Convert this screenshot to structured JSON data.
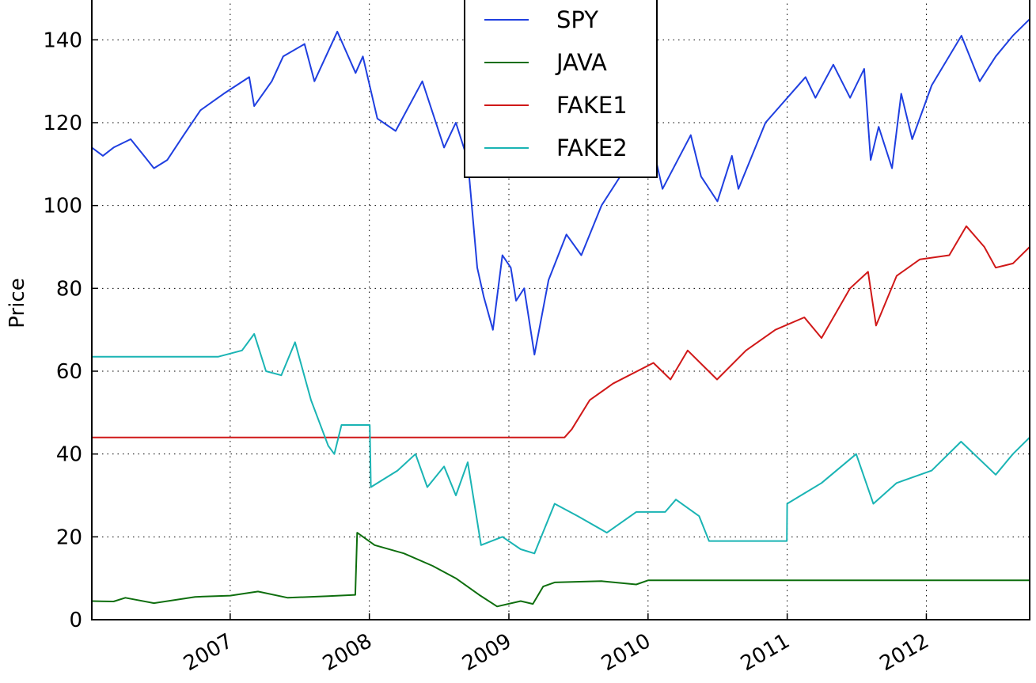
{
  "chart_data": {
    "type": "line",
    "title": "",
    "xlabel": "",
    "ylabel": "Price",
    "xlim": [
      "2006-01-03",
      "2012-09-28"
    ],
    "ylim": [
      0,
      150
    ],
    "x_ticks": [
      "2007-01-01",
      "2008-01-01",
      "2009-01-01",
      "2010-01-01",
      "2011-01-01",
      "2012-01-01"
    ],
    "x_tick_labels": [
      "2007",
      "2008",
      "2009",
      "2010",
      "2011",
      "2012"
    ],
    "y_ticks": [
      0,
      20,
      40,
      60,
      80,
      100,
      120,
      140
    ],
    "y_tick_labels": [
      "0",
      "20",
      "40",
      "60",
      "80",
      "100",
      "120",
      "140"
    ],
    "grid": true,
    "legend_position": "top-center",
    "series": [
      {
        "name": "SPY",
        "color": "#1f3fe0",
        "points": [
          [
            "2006-01-03",
            114
          ],
          [
            "2006-02-01",
            112
          ],
          [
            "2006-03-01",
            114
          ],
          [
            "2006-04-15",
            116
          ],
          [
            "2006-05-20",
            112
          ],
          [
            "2006-06-15",
            109
          ],
          [
            "2006-07-20",
            111
          ],
          [
            "2006-09-01",
            117
          ],
          [
            "2006-10-15",
            123
          ],
          [
            "2006-12-15",
            127
          ],
          [
            "2007-02-20",
            131
          ],
          [
            "2007-03-05",
            124
          ],
          [
            "2007-04-20",
            130
          ],
          [
            "2007-05-20",
            136
          ],
          [
            "2007-07-15",
            139
          ],
          [
            "2007-08-10",
            130
          ],
          [
            "2007-10-09",
            142
          ],
          [
            "2007-11-26",
            132
          ],
          [
            "2007-12-15",
            136
          ],
          [
            "2008-01-22",
            121
          ],
          [
            "2008-03-10",
            118
          ],
          [
            "2008-05-19",
            130
          ],
          [
            "2008-07-15",
            114
          ],
          [
            "2008-08-15",
            120
          ],
          [
            "2008-09-15",
            111
          ],
          [
            "2008-10-10",
            85
          ],
          [
            "2008-10-27",
            78
          ],
          [
            "2008-11-20",
            70
          ],
          [
            "2008-12-15",
            88
          ],
          [
            "2009-01-06",
            85
          ],
          [
            "2009-01-20",
            77
          ],
          [
            "2009-02-10",
            80
          ],
          [
            "2009-03-09",
            64
          ],
          [
            "2009-04-15",
            82
          ],
          [
            "2009-06-01",
            93
          ],
          [
            "2009-07-10",
            88
          ],
          [
            "2009-09-01",
            100
          ],
          [
            "2009-10-20",
            107
          ],
          [
            "2010-01-19",
            112
          ],
          [
            "2010-02-08",
            104
          ],
          [
            "2010-04-23",
            117
          ],
          [
            "2010-05-20",
            107
          ],
          [
            "2010-07-02",
            101
          ],
          [
            "2010-08-09",
            112
          ],
          [
            "2010-08-26",
            104
          ],
          [
            "2010-11-05",
            120
          ],
          [
            "2011-02-18",
            131
          ],
          [
            "2011-03-16",
            126
          ],
          [
            "2011-05-02",
            134
          ],
          [
            "2011-06-15",
            126
          ],
          [
            "2011-07-22",
            133
          ],
          [
            "2011-08-08",
            111
          ],
          [
            "2011-08-29",
            119
          ],
          [
            "2011-10-03",
            109
          ],
          [
            "2011-10-27",
            127
          ],
          [
            "2011-11-25",
            116
          ],
          [
            "2012-01-15",
            129
          ],
          [
            "2012-04-02",
            141
          ],
          [
            "2012-05-20",
            130
          ],
          [
            "2012-07-01",
            136
          ],
          [
            "2012-08-15",
            141
          ],
          [
            "2012-09-28",
            145
          ]
        ]
      },
      {
        "name": "JAVA",
        "color": "#0e6e0e",
        "points": [
          [
            "2006-01-03",
            4.5
          ],
          [
            "2006-03-01",
            4.4
          ],
          [
            "2006-04-01",
            5.3
          ],
          [
            "2006-06-15",
            4
          ],
          [
            "2006-10-01",
            5.5
          ],
          [
            "2007-01-01",
            5.8
          ],
          [
            "2007-03-15",
            6.8
          ],
          [
            "2007-06-01",
            5.3
          ],
          [
            "2007-09-15",
            5.7
          ],
          [
            "2007-11-25",
            6
          ],
          [
            "2007-11-30",
            21
          ],
          [
            "2008-01-15",
            18
          ],
          [
            "2008-04-01",
            16
          ],
          [
            "2008-06-15",
            13
          ],
          [
            "2008-08-15",
            10
          ],
          [
            "2008-10-15",
            6
          ],
          [
            "2008-12-01",
            3.2
          ],
          [
            "2009-02-01",
            4.5
          ],
          [
            "2009-03-05",
            3.8
          ],
          [
            "2009-04-01",
            8
          ],
          [
            "2009-05-01",
            9
          ],
          [
            "2009-09-01",
            9.3
          ],
          [
            "2009-12-01",
            8.5
          ],
          [
            "2010-01-01",
            9.5
          ],
          [
            "2012-09-28",
            9.5
          ]
        ]
      },
      {
        "name": "FAKE1",
        "color": "#d01818",
        "points": [
          [
            "2006-01-03",
            44
          ],
          [
            "2009-05-27",
            44
          ],
          [
            "2009-06-15",
            46
          ],
          [
            "2009-08-01",
            53
          ],
          [
            "2009-10-01",
            57
          ],
          [
            "2010-01-15",
            62
          ],
          [
            "2010-03-01",
            58
          ],
          [
            "2010-04-15",
            65
          ],
          [
            "2010-07-01",
            58
          ],
          [
            "2010-09-15",
            65
          ],
          [
            "2010-12-01",
            70
          ],
          [
            "2011-02-15",
            73
          ],
          [
            "2011-04-01",
            68
          ],
          [
            "2011-06-15",
            80
          ],
          [
            "2011-08-01",
            84
          ],
          [
            "2011-08-22",
            71
          ],
          [
            "2011-10-15",
            83
          ],
          [
            "2011-12-15",
            87
          ],
          [
            "2012-03-01",
            88
          ],
          [
            "2012-04-15",
            95
          ],
          [
            "2012-06-01",
            90
          ],
          [
            "2012-07-01",
            85
          ],
          [
            "2012-08-15",
            86
          ],
          [
            "2012-09-28",
            90
          ]
        ]
      },
      {
        "name": "FAKE2",
        "color": "#1ab4b4",
        "points": [
          [
            "2006-01-03",
            63.5
          ],
          [
            "2006-12-01",
            63.5
          ],
          [
            "2007-02-01",
            65
          ],
          [
            "2007-03-05",
            69
          ],
          [
            "2007-04-05",
            60
          ],
          [
            "2007-05-15",
            59
          ],
          [
            "2007-06-20",
            67
          ],
          [
            "2007-08-01",
            53
          ],
          [
            "2007-09-15",
            42
          ],
          [
            "2007-10-01",
            40
          ],
          [
            "2007-10-20",
            47
          ],
          [
            "2008-01-02",
            47
          ],
          [
            "2008-01-05",
            32
          ],
          [
            "2008-03-15",
            36
          ],
          [
            "2008-05-01",
            40
          ],
          [
            "2008-06-01",
            32
          ],
          [
            "2008-07-15",
            37
          ],
          [
            "2008-08-15",
            30
          ],
          [
            "2008-09-15",
            38
          ],
          [
            "2008-10-20",
            18
          ],
          [
            "2008-12-15",
            20
          ],
          [
            "2009-02-01",
            17
          ],
          [
            "2009-03-09",
            16
          ],
          [
            "2009-05-01",
            28
          ],
          [
            "2009-07-01",
            25
          ],
          [
            "2009-09-15",
            21
          ],
          [
            "2009-12-01",
            26
          ],
          [
            "2010-02-15",
            26
          ],
          [
            "2010-03-15",
            29
          ],
          [
            "2010-05-15",
            25
          ],
          [
            "2010-06-10",
            19
          ],
          [
            "2010-12-31",
            19
          ],
          [
            "2011-01-01",
            28
          ],
          [
            "2011-04-01",
            33
          ],
          [
            "2011-07-01",
            40
          ],
          [
            "2011-08-15",
            28
          ],
          [
            "2011-10-15",
            33
          ],
          [
            "2012-01-15",
            36
          ],
          [
            "2012-04-01",
            43
          ],
          [
            "2012-07-01",
            35
          ],
          [
            "2012-08-15",
            40
          ],
          [
            "2012-09-28",
            44
          ]
        ]
      }
    ]
  }
}
